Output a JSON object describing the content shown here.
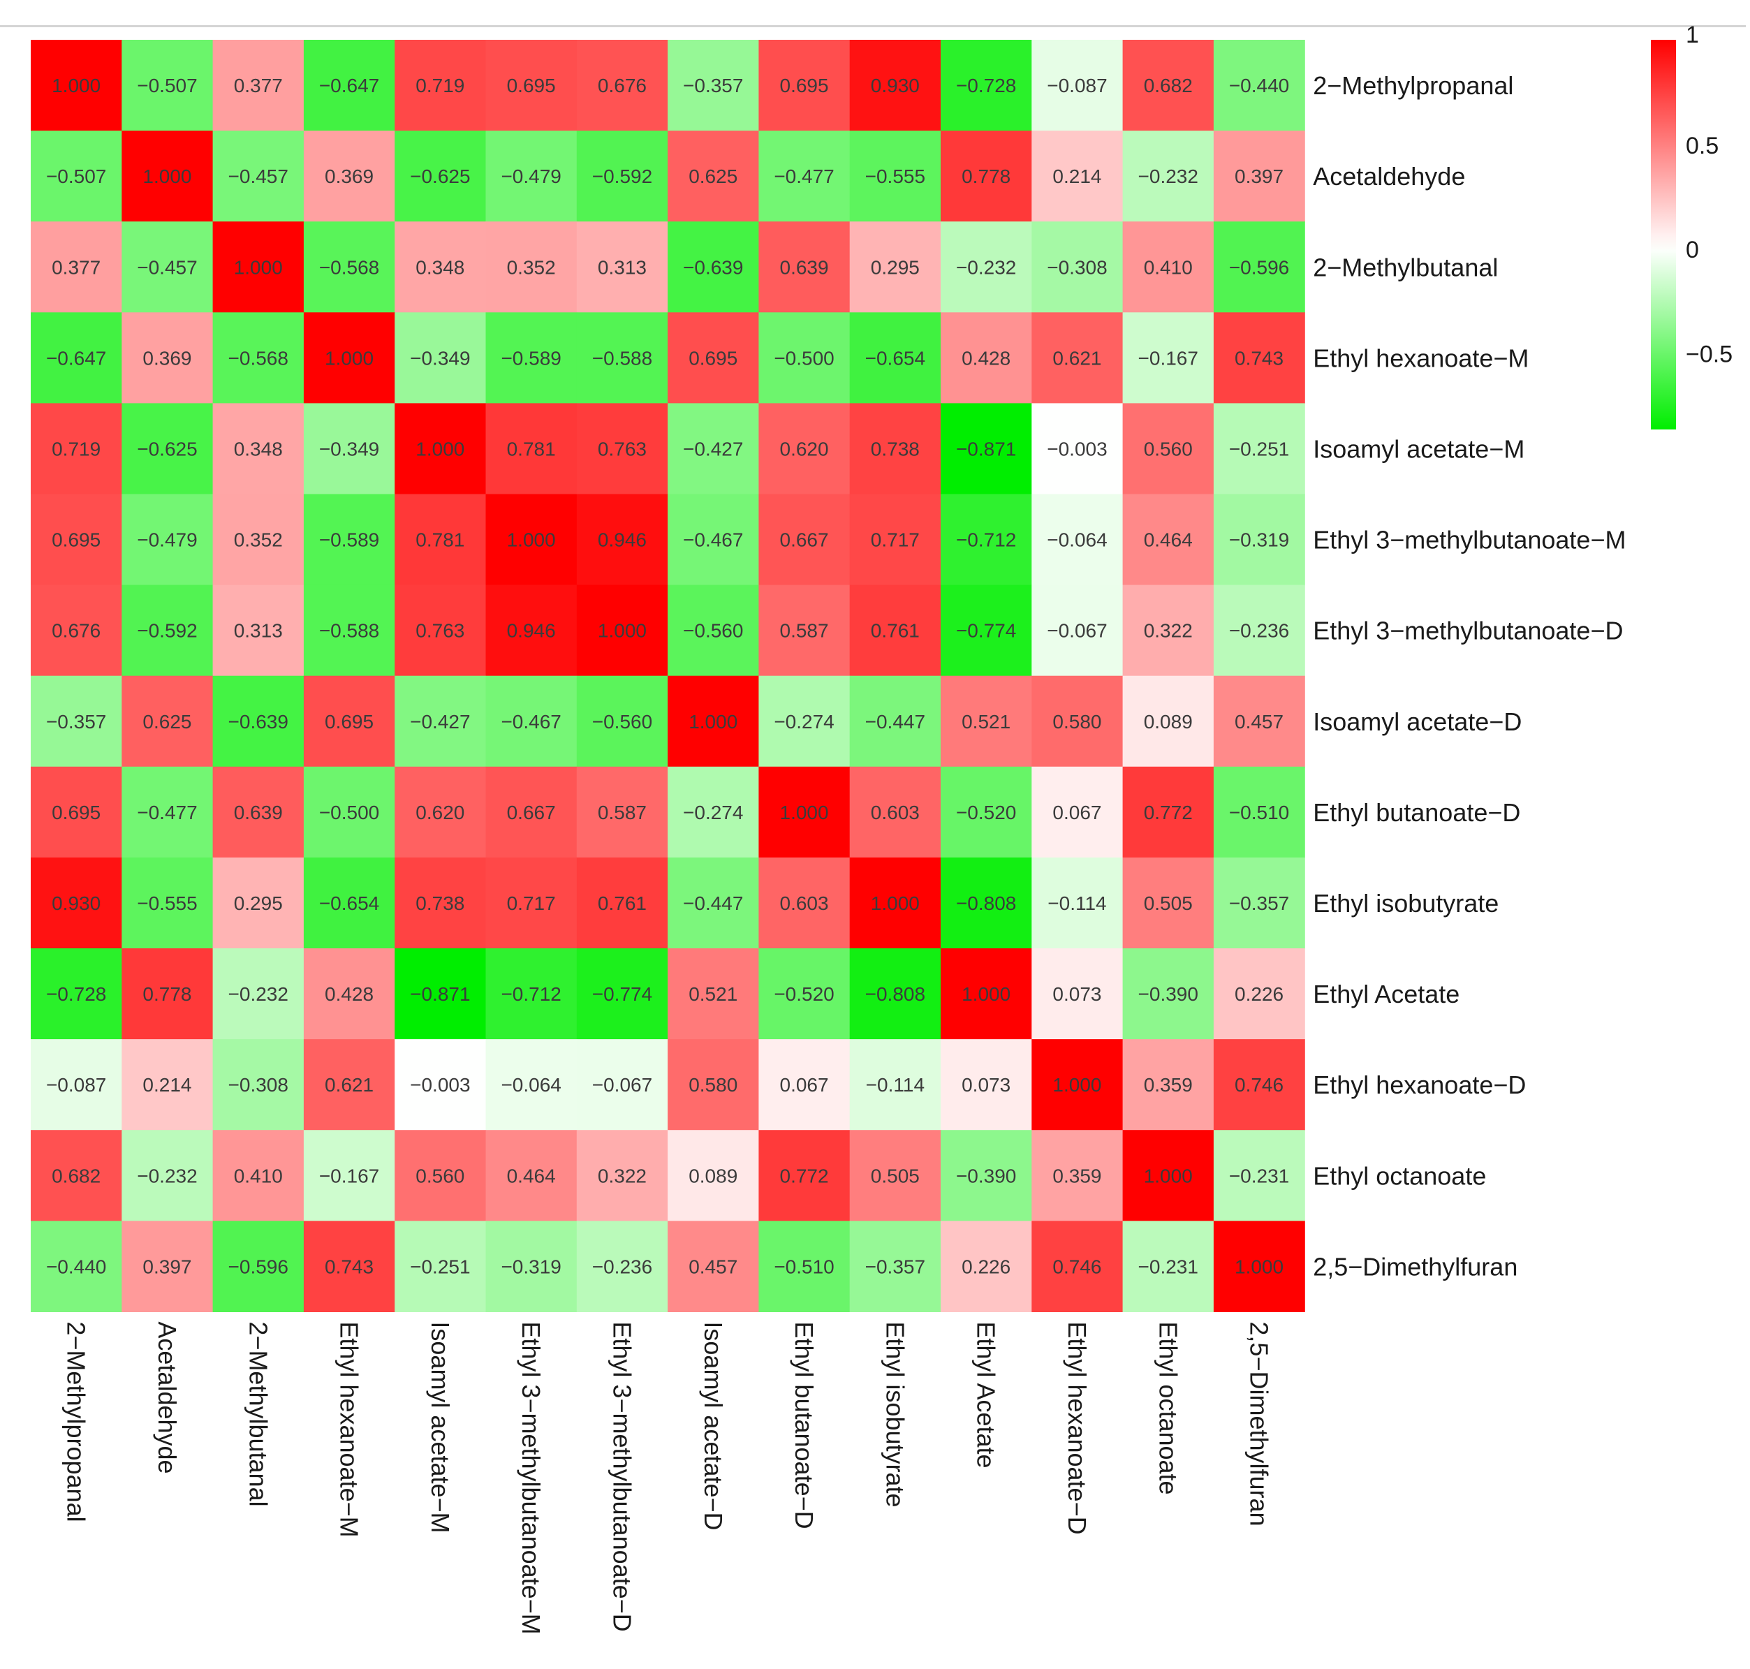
{
  "chart_data": {
    "type": "heatmap",
    "title": "",
    "labels": [
      "2−Methylpropanal",
      "Acetaldehyde",
      "2−Methylbutanal",
      "Ethyl hexanoate−M",
      "Isoamyl acetate−M",
      "Ethyl 3−methylbutanoate−M",
      "Ethyl 3−methylbutanoate−D",
      "Isoamyl acetate−D",
      "Ethyl butanoate−D",
      "Ethyl isobutyrate",
      "Ethyl Acetate",
      "Ethyl hexanoate−D",
      "Ethyl octanoate",
      "2,5−Dimethylfuran"
    ],
    "matrix": [
      [
        "1.000",
        "−0.507",
        "0.377",
        "−0.647",
        "0.719",
        "0.695",
        "0.676",
        "−0.357",
        "0.695",
        "0.930",
        "−0.728",
        "−0.087",
        "0.682",
        "−0.440"
      ],
      [
        "−0.507",
        "1.000",
        "−0.457",
        "0.369",
        "−0.625",
        "−0.479",
        "−0.592",
        "0.625",
        "−0.477",
        "−0.555",
        "0.778",
        "0.214",
        "−0.232",
        "0.397"
      ],
      [
        "0.377",
        "−0.457",
        "1.000",
        "−0.568",
        "0.348",
        "0.352",
        "0.313",
        "−0.639",
        "0.639",
        "0.295",
        "−0.232",
        "−0.308",
        "0.410",
        "−0.596"
      ],
      [
        "−0.647",
        "0.369",
        "−0.568",
        "1.000",
        "−0.349",
        "−0.589",
        "−0.588",
        "0.695",
        "−0.500",
        "−0.654",
        "0.428",
        "0.621",
        "−0.167",
        "0.743"
      ],
      [
        "0.719",
        "−0.625",
        "0.348",
        "−0.349",
        "1.000",
        "0.781",
        "0.763",
        "−0.427",
        "0.620",
        "0.738",
        "−0.871",
        "−0.003",
        "0.560",
        "−0.251"
      ],
      [
        "0.695",
        "−0.479",
        "0.352",
        "−0.589",
        "0.781",
        "1.000",
        "0.946",
        "−0.467",
        "0.667",
        "0.717",
        "−0.712",
        "−0.064",
        "0.464",
        "−0.319"
      ],
      [
        "0.676",
        "−0.592",
        "0.313",
        "−0.588",
        "0.763",
        "0.946",
        "1.000",
        "−0.560",
        "0.587",
        "0.761",
        "−0.774",
        "−0.067",
        "0.322",
        "−0.236"
      ],
      [
        "−0.357",
        "0.625",
        "−0.639",
        "0.695",
        "−0.427",
        "−0.467",
        "−0.560",
        "1.000",
        "−0.274",
        "−0.447",
        "0.521",
        "0.580",
        "0.089",
        "0.457"
      ],
      [
        "0.695",
        "−0.477",
        "0.639",
        "−0.500",
        "0.620",
        "0.667",
        "0.587",
        "−0.274",
        "1.000",
        "0.603",
        "−0.520",
        "0.067",
        "0.772",
        "−0.510"
      ],
      [
        "0.930",
        "−0.555",
        "0.295",
        "−0.654",
        "0.738",
        "0.717",
        "0.761",
        "−0.447",
        "0.603",
        "1.000",
        "−0.808",
        "−0.114",
        "0.505",
        "−0.357"
      ],
      [
        "−0.728",
        "0.778",
        "−0.232",
        "0.428",
        "−0.871",
        "−0.712",
        "−0.774",
        "0.521",
        "−0.520",
        "−0.808",
        "1.000",
        "0.073",
        "−0.390",
        "0.226"
      ],
      [
        "−0.087",
        "0.214",
        "−0.308",
        "0.621",
        "−0.003",
        "−0.064",
        "−0.067",
        "0.580",
        "0.067",
        "−0.114",
        "0.073",
        "1.000",
        "0.359",
        "0.746"
      ],
      [
        "0.682",
        "−0.232",
        "0.410",
        "−0.167",
        "0.560",
        "0.464",
        "0.322",
        "0.089",
        "0.772",
        "0.505",
        "−0.390",
        "0.359",
        "1.000",
        "−0.231"
      ],
      [
        "−0.440",
        "0.397",
        "−0.596",
        "0.743",
        "−0.251",
        "−0.319",
        "−0.236",
        "0.457",
        "−0.510",
        "−0.357",
        "0.226",
        "0.746",
        "−0.231",
        "1.000"
      ]
    ],
    "color_scale": {
      "min": -0.871,
      "max": 1,
      "low_color": "#00ee00",
      "mid_color": "#ffffff",
      "high_color": "#ff0000",
      "ticks": [
        1,
        0.5,
        0,
        -0.5
      ],
      "tick_labels": [
        "1",
        "0.5",
        "0",
        "−0.5"
      ]
    },
    "legend_position": "top-right",
    "grid": false
  }
}
